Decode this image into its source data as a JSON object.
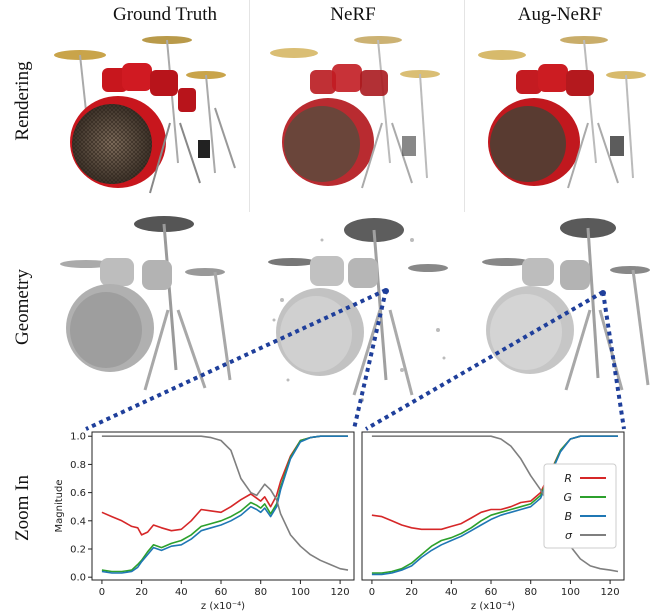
{
  "columns": {
    "ground_truth": "Ground Truth",
    "nerf": "NeRF",
    "aug_nerf": "Aug-NeRF"
  },
  "rows": {
    "rendering": "Rendering",
    "geometry": "Geometry",
    "zoom_in": "Zoom In"
  },
  "colors": {
    "R": "#d62728",
    "G": "#2ca02c",
    "B": "#1f77b4",
    "sigma": "#7f7f7f",
    "drum_red": "#c8161d",
    "zoom_link": "#1f3f9b"
  },
  "chart_data": [
    {
      "type": "line",
      "panel": "NeRF zoom-in",
      "xlabel": "z (x10⁻⁴)",
      "ylabel": "Magnitude",
      "xlim": [
        -5,
        127
      ],
      "ylim": [
        -0.02,
        1.03
      ],
      "xticks": [
        "0",
        "20",
        "40",
        "60",
        "80",
        "100",
        "120"
      ],
      "yticks": [
        "0.0",
        "0.2",
        "0.4",
        "0.6",
        "0.8",
        "1.0"
      ],
      "x": [
        0,
        5,
        10,
        15,
        18,
        20,
        23,
        26,
        30,
        35,
        40,
        45,
        50,
        55,
        60,
        65,
        70,
        75,
        78,
        80,
        82,
        85,
        88,
        90,
        95,
        100,
        105,
        110,
        115,
        120,
        124
      ],
      "series": [
        {
          "name": "R",
          "values": [
            0.46,
            0.43,
            0.4,
            0.36,
            0.35,
            0.3,
            0.32,
            0.37,
            0.35,
            0.33,
            0.34,
            0.4,
            0.48,
            0.47,
            0.46,
            0.5,
            0.55,
            0.59,
            0.56,
            0.54,
            0.57,
            0.5,
            0.58,
            0.68,
            0.86,
            0.97,
            0.99,
            1.0,
            1.0,
            1.0,
            1.0
          ]
        },
        {
          "name": "G",
          "values": [
            0.05,
            0.04,
            0.04,
            0.05,
            0.09,
            0.12,
            0.18,
            0.23,
            0.21,
            0.24,
            0.26,
            0.3,
            0.36,
            0.38,
            0.4,
            0.43,
            0.47,
            0.53,
            0.51,
            0.49,
            0.52,
            0.45,
            0.52,
            0.64,
            0.85,
            0.97,
            0.99,
            1.0,
            1.0,
            1.0,
            1.0
          ]
        },
        {
          "name": "B",
          "values": [
            0.04,
            0.03,
            0.03,
            0.04,
            0.07,
            0.11,
            0.16,
            0.21,
            0.19,
            0.22,
            0.23,
            0.27,
            0.33,
            0.35,
            0.37,
            0.4,
            0.44,
            0.5,
            0.48,
            0.46,
            0.49,
            0.43,
            0.5,
            0.62,
            0.84,
            0.96,
            0.99,
            1.0,
            1.0,
            1.0,
            1.0
          ]
        },
        {
          "name": "σ",
          "values": [
            1.0,
            1.0,
            1.0,
            1.0,
            1.0,
            1.0,
            1.0,
            1.0,
            1.0,
            1.0,
            1.0,
            1.0,
            1.0,
            0.99,
            0.97,
            0.9,
            0.7,
            0.6,
            0.58,
            0.62,
            0.66,
            0.62,
            0.55,
            0.45,
            0.3,
            0.22,
            0.16,
            0.12,
            0.09,
            0.06,
            0.05
          ]
        }
      ]
    },
    {
      "type": "line",
      "panel": "Aug-NeRF zoom-in",
      "xlabel": "z (x10⁻⁴)",
      "ylabel": "",
      "xlim": [
        -5,
        127
      ],
      "ylim": [
        -0.02,
        1.03
      ],
      "xticks": [
        "0",
        "20",
        "40",
        "60",
        "80",
        "100",
        "120"
      ],
      "yticks": [],
      "legend": "right",
      "x": [
        0,
        5,
        10,
        15,
        20,
        25,
        30,
        35,
        40,
        45,
        50,
        55,
        60,
        65,
        70,
        75,
        80,
        85,
        90,
        95,
        100,
        105,
        110,
        115,
        120,
        124
      ],
      "series": [
        {
          "name": "R",
          "values": [
            0.44,
            0.43,
            0.4,
            0.37,
            0.35,
            0.34,
            0.34,
            0.34,
            0.36,
            0.38,
            0.42,
            0.46,
            0.48,
            0.48,
            0.5,
            0.53,
            0.54,
            0.6,
            0.75,
            0.9,
            0.98,
            1.0,
            1.0,
            1.0,
            1.0,
            1.0
          ]
        },
        {
          "name": "G",
          "values": [
            0.03,
            0.03,
            0.04,
            0.06,
            0.1,
            0.16,
            0.22,
            0.26,
            0.28,
            0.31,
            0.35,
            0.4,
            0.44,
            0.46,
            0.48,
            0.5,
            0.52,
            0.58,
            0.74,
            0.9,
            0.98,
            1.0,
            1.0,
            1.0,
            1.0,
            1.0
          ]
        },
        {
          "name": "B",
          "values": [
            0.02,
            0.02,
            0.03,
            0.05,
            0.08,
            0.14,
            0.19,
            0.23,
            0.26,
            0.29,
            0.33,
            0.37,
            0.41,
            0.44,
            0.46,
            0.48,
            0.5,
            0.56,
            0.73,
            0.89,
            0.98,
            1.0,
            1.0,
            1.0,
            1.0,
            1.0
          ]
        },
        {
          "name": "σ",
          "values": [
            1.0,
            1.0,
            1.0,
            1.0,
            1.0,
            1.0,
            1.0,
            1.0,
            1.0,
            1.0,
            1.0,
            1.0,
            1.0,
            0.98,
            0.93,
            0.84,
            0.72,
            0.62,
            0.5,
            0.36,
            0.22,
            0.13,
            0.08,
            0.06,
            0.05,
            0.04
          ]
        }
      ]
    }
  ]
}
